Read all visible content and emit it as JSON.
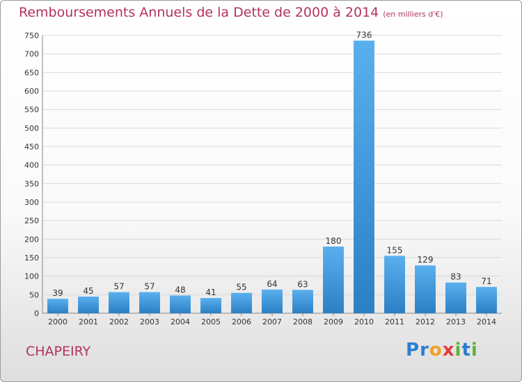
{
  "chart_data": {
    "type": "bar",
    "title": "Remboursements Annuels de la Dette de 2000 à 2014",
    "subtitle": "(en milliers d'€)",
    "categories": [
      "2000",
      "2001",
      "2002",
      "2003",
      "2004",
      "2005",
      "2006",
      "2007",
      "2008",
      "2009",
      "2010",
      "2011",
      "2012",
      "2013",
      "2014"
    ],
    "values": [
      39,
      45,
      57,
      57,
      48,
      41,
      55,
      64,
      63,
      180,
      736,
      155,
      129,
      83,
      71
    ],
    "ylim": [
      0,
      750
    ],
    "yticks": [
      0,
      50,
      100,
      150,
      200,
      250,
      300,
      350,
      400,
      450,
      500,
      550,
      600,
      650,
      700,
      750
    ],
    "grid": true,
    "colors": {
      "bar_light": "#5ab0ee",
      "bar_dark": "#2b7fc4",
      "grid": "#d9d9d9",
      "text": "#333333",
      "title": "#b3325d"
    }
  },
  "footer": {
    "town": "CHAPEIRY",
    "logo_letters": [
      {
        "ch": "P",
        "color": "#2a7fd0"
      },
      {
        "ch": "r",
        "color": "#2a7fd0"
      },
      {
        "ch": "o",
        "color": "#f1a020"
      },
      {
        "ch": "x",
        "color": "#e23a3a"
      },
      {
        "ch": "i",
        "color": "#5db33a"
      },
      {
        "ch": "t",
        "color": "#2a7fd0"
      },
      {
        "ch": "i",
        "color": "#5db33a"
      }
    ]
  }
}
